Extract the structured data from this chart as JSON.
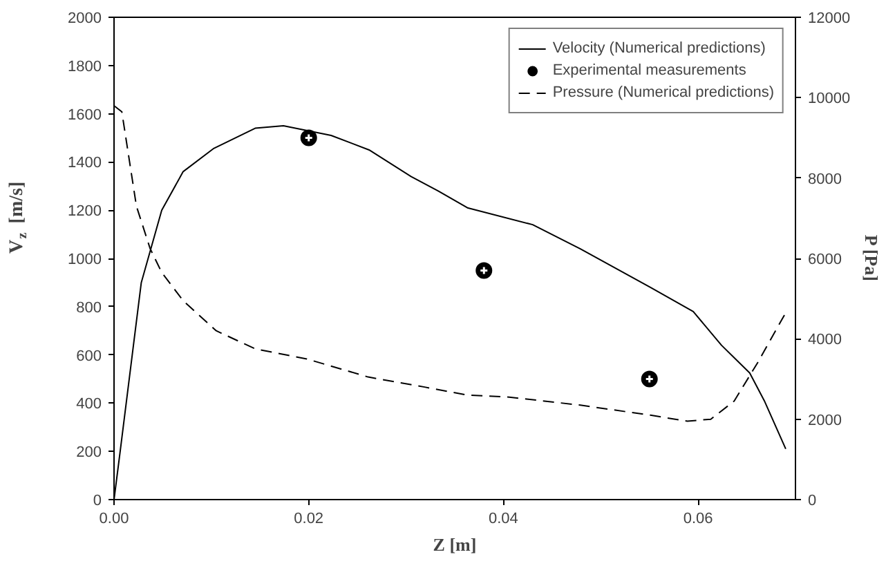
{
  "chart_data": {
    "type": "line",
    "xlabel": "Z [m]",
    "ylabel": "V$_{z}$ [m/s]",
    "y2label": "P [Pa]",
    "xlim": [
      0,
      0.07
    ],
    "xticks": [
      {
        "value": 0,
        "label": "0.00"
      },
      0.02,
      0.04,
      0.06
    ],
    "ylim": [
      0,
      2000
    ],
    "yticks": [
      0,
      200,
      400,
      600,
      800,
      1000,
      1200,
      1400,
      1600,
      1800,
      2000
    ],
    "y2lim": [
      0,
      12000
    ],
    "y2ticks": [
      0,
      2000,
      4000,
      6000,
      8000,
      10000,
      12000
    ],
    "grid": false,
    "legend": "top right",
    "series": [
      {
        "name": "Velocity (Numerical predictions)",
        "line_style": "solid",
        "color": "#000000",
        "x": [
          0,
          0.0006,
          0.0028,
          0.0049,
          0.0071,
          0.0102,
          0.0145,
          0.0174,
          0.0223,
          0.0262,
          0.0305,
          0.0333,
          0.0363,
          0.043,
          0.0479,
          0.0551,
          0.0595,
          0.0624,
          0.0653,
          0.0668,
          0.069
        ],
        "values": [
          0,
          190,
          900,
          1200,
          1360,
          1455,
          1540,
          1550,
          1510,
          1450,
          1340,
          1280,
          1210,
          1140,
          1040,
          880,
          780,
          640,
          525,
          410,
          210
        ]
      },
      {
        "name": "Experimental measurements",
        "type": "scatter",
        "marker": "circle",
        "color": "#000000",
        "x": [
          0.02,
          0.038,
          0.055
        ],
        "values": [
          1500,
          950,
          500
        ]
      },
      {
        "name": "Pressure (Numerical predictions)",
        "type": "line",
        "line_style": "dashed",
        "axis": "y2",
        "color": "#000000",
        "x": [
          0,
          0.0008,
          0.0023,
          0.0037,
          0.0049,
          0.0071,
          0.0105,
          0.0145,
          0.0198,
          0.0261,
          0.0319,
          0.0363,
          0.0406,
          0.0479,
          0.0551,
          0.0589,
          0.0613,
          0.0637,
          0.0661,
          0.069
        ],
        "values": [
          9800,
          9650,
          7300,
          6250,
          5650,
          4950,
          4200,
          3750,
          3500,
          3050,
          2800,
          2600,
          2550,
          2350,
          2100,
          1950,
          2000,
          2450,
          3400,
          4650
        ]
      }
    ]
  }
}
